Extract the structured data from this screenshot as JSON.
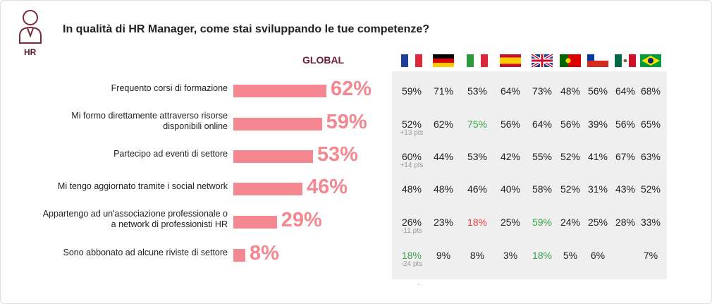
{
  "header": {
    "title": "In qualità di HR Manager, come stai sviluppando le tue competenze?",
    "icon_label": "HR"
  },
  "chart_data": {
    "type": "bar",
    "title": "GLOBAL",
    "orientation": "horizontal",
    "color": "#f4878f",
    "categories": [
      "Frequento corsi di formazione",
      "Mi formo direttamente attraverso risorse\ndisponibili online",
      "Partecipo ad eventi di settore",
      "Mi tengo aggiornato tramite i social network",
      "Appartengo ad un'associazione professionale o\na network di professionisti HR",
      "Sono abbonato ad alcune riviste di settore"
    ],
    "values": [
      62,
      59,
      53,
      46,
      29,
      8
    ],
    "value_labels": [
      "62%",
      "59%",
      "53%",
      "46%",
      "29%",
      "8%"
    ]
  },
  "table": {
    "rows": [
      [
        "59%",
        "71%",
        "53%",
        "64%",
        "73%",
        "48%",
        "56%",
        "64%",
        "68%"
      ],
      [
        "52%",
        "62%",
        {
          "text": "75%",
          "color": "#3aa14a"
        },
        "56%",
        "64%",
        "56%",
        "39%",
        "56%",
        "65%"
      ],
      [
        "60%",
        "44%",
        "53%",
        "42%",
        "55%",
        "52%",
        "41%",
        "67%",
        "63%"
      ],
      [
        "48%",
        "48%",
        "46%",
        "40%",
        "58%",
        "52%",
        "31%",
        "43%",
        "52%"
      ],
      [
        "26%",
        "23%",
        {
          "text": "18%",
          "color": "#e2404a"
        },
        "25%",
        {
          "text": "59%",
          "color": "#3aa14a"
        },
        "24%",
        "25%",
        "28%",
        "33%"
      ],
      [
        {
          "text": "18%",
          "color": "#3aa14a"
        },
        "9%",
        "8%",
        "3%",
        {
          "text": "18%",
          "color": "#3aa14a"
        },
        "5%",
        "6%",
        null,
        "7%"
      ]
    ],
    "notes": [
      null,
      "+13 pts",
      "+14 pts",
      null,
      "-11 pts",
      "-24 pts"
    ],
    "footnote": "-"
  }
}
